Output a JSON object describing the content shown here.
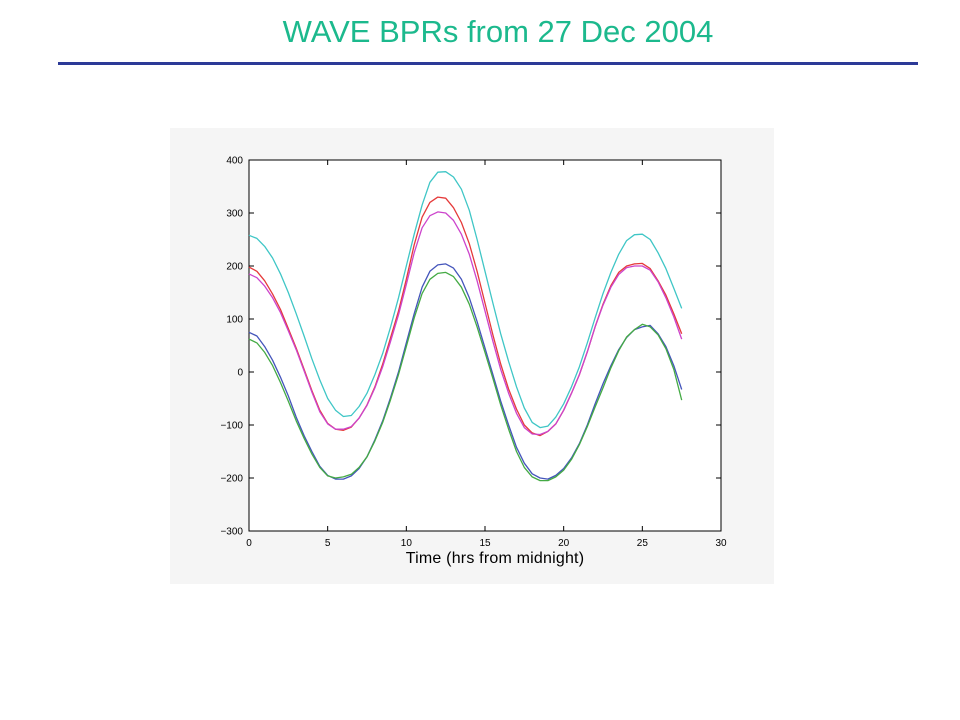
{
  "slide": {
    "title": "WAVE BPRs from 27 Dec 2004"
  },
  "chart_data": {
    "type": "line",
    "title": "",
    "xlabel": "Time (hrs from midnight)",
    "ylabel": "",
    "xlim": [
      0,
      30
    ],
    "ylim": [
      -300,
      400
    ],
    "xticks": [
      0,
      5,
      10,
      15,
      20,
      25,
      30
    ],
    "yticks": [
      400,
      300,
      200,
      100,
      0,
      -100,
      -200,
      -300
    ],
    "ytick_labels": [
      "400",
      "300",
      "200",
      "100",
      "0",
      "−100",
      "−200",
      "−300"
    ],
    "grid": false,
    "x": [
      0,
      0.5,
      1,
      1.5,
      2,
      2.5,
      3,
      3.5,
      4,
      4.5,
      5,
      5.5,
      6,
      6.5,
      7,
      7.5,
      8,
      8.5,
      9,
      9.5,
      10,
      10.5,
      11,
      11.5,
      12,
      12.5,
      13,
      13.5,
      14,
      14.5,
      15,
      15.5,
      16,
      16.5,
      17,
      17.5,
      18,
      18.5,
      19,
      19.5,
      20,
      20.5,
      21,
      21.5,
      22,
      22.5,
      23,
      23.5,
      24,
      24.5,
      25,
      25.5,
      26,
      26.5,
      27,
      27.5
    ],
    "series": [
      {
        "color": "#3fc6c6",
        "values": [
          258,
          252,
          237,
          215,
          185,
          150,
          110,
          68,
          25,
          -15,
          -50,
          -72,
          -84,
          -82,
          -65,
          -40,
          -5,
          35,
          85,
          140,
          200,
          260,
          315,
          358,
          377,
          378,
          368,
          345,
          305,
          250,
          190,
          130,
          72,
          20,
          -28,
          -68,
          -95,
          -105,
          -102,
          -85,
          -60,
          -28,
          10,
          55,
          102,
          148,
          188,
          222,
          248,
          259,
          260,
          250,
          225,
          195,
          158,
          120
        ]
      },
      {
        "color": "#e53a3a",
        "values": [
          198,
          190,
          172,
          147,
          118,
          82,
          45,
          5,
          -35,
          -72,
          -97,
          -108,
          -110,
          -104,
          -87,
          -62,
          -28,
          15,
          65,
          115,
          175,
          240,
          292,
          320,
          330,
          328,
          310,
          282,
          242,
          190,
          130,
          70,
          15,
          -32,
          -70,
          -100,
          -115,
          -120,
          -112,
          -98,
          -72,
          -40,
          -5,
          38,
          85,
          128,
          163,
          188,
          200,
          204,
          205,
          195,
          172,
          145,
          110,
          72
        ]
      },
      {
        "color": "#cc44cc",
        "values": [
          185,
          178,
          162,
          140,
          112,
          78,
          42,
          2,
          -38,
          -75,
          -98,
          -108,
          -108,
          -103,
          -87,
          -63,
          -30,
          10,
          58,
          108,
          165,
          225,
          272,
          295,
          302,
          300,
          286,
          260,
          222,
          172,
          115,
          58,
          5,
          -40,
          -78,
          -105,
          -117,
          -118,
          -112,
          -98,
          -72,
          -40,
          -5,
          38,
          85,
          126,
          160,
          184,
          197,
          200,
          200,
          192,
          170,
          140,
          104,
          62
        ]
      },
      {
        "color": "#4455bb",
        "values": [
          75,
          68,
          48,
          22,
          -10,
          -45,
          -85,
          -120,
          -150,
          -178,
          -195,
          -202,
          -202,
          -196,
          -182,
          -160,
          -128,
          -92,
          -48,
          0,
          55,
          110,
          160,
          190,
          202,
          204,
          196,
          175,
          140,
          95,
          45,
          -5,
          -55,
          -100,
          -142,
          -172,
          -192,
          -200,
          -202,
          -195,
          -182,
          -162,
          -135,
          -100,
          -60,
          -22,
          12,
          42,
          65,
          80,
          85,
          88,
          72,
          48,
          12,
          -33
        ]
      },
      {
        "color": "#44aa44",
        "values": [
          62,
          55,
          37,
          12,
          -20,
          -55,
          -92,
          -125,
          -155,
          -180,
          -196,
          -200,
          -198,
          -193,
          -180,
          -160,
          -130,
          -95,
          -52,
          -5,
          48,
          102,
          148,
          175,
          186,
          188,
          180,
          160,
          128,
          85,
          37,
          -12,
          -62,
          -108,
          -150,
          -180,
          -198,
          -205,
          -205,
          -198,
          -185,
          -165,
          -137,
          -103,
          -66,
          -30,
          8,
          40,
          66,
          80,
          90,
          85,
          70,
          44,
          5,
          -53
        ]
      }
    ]
  }
}
